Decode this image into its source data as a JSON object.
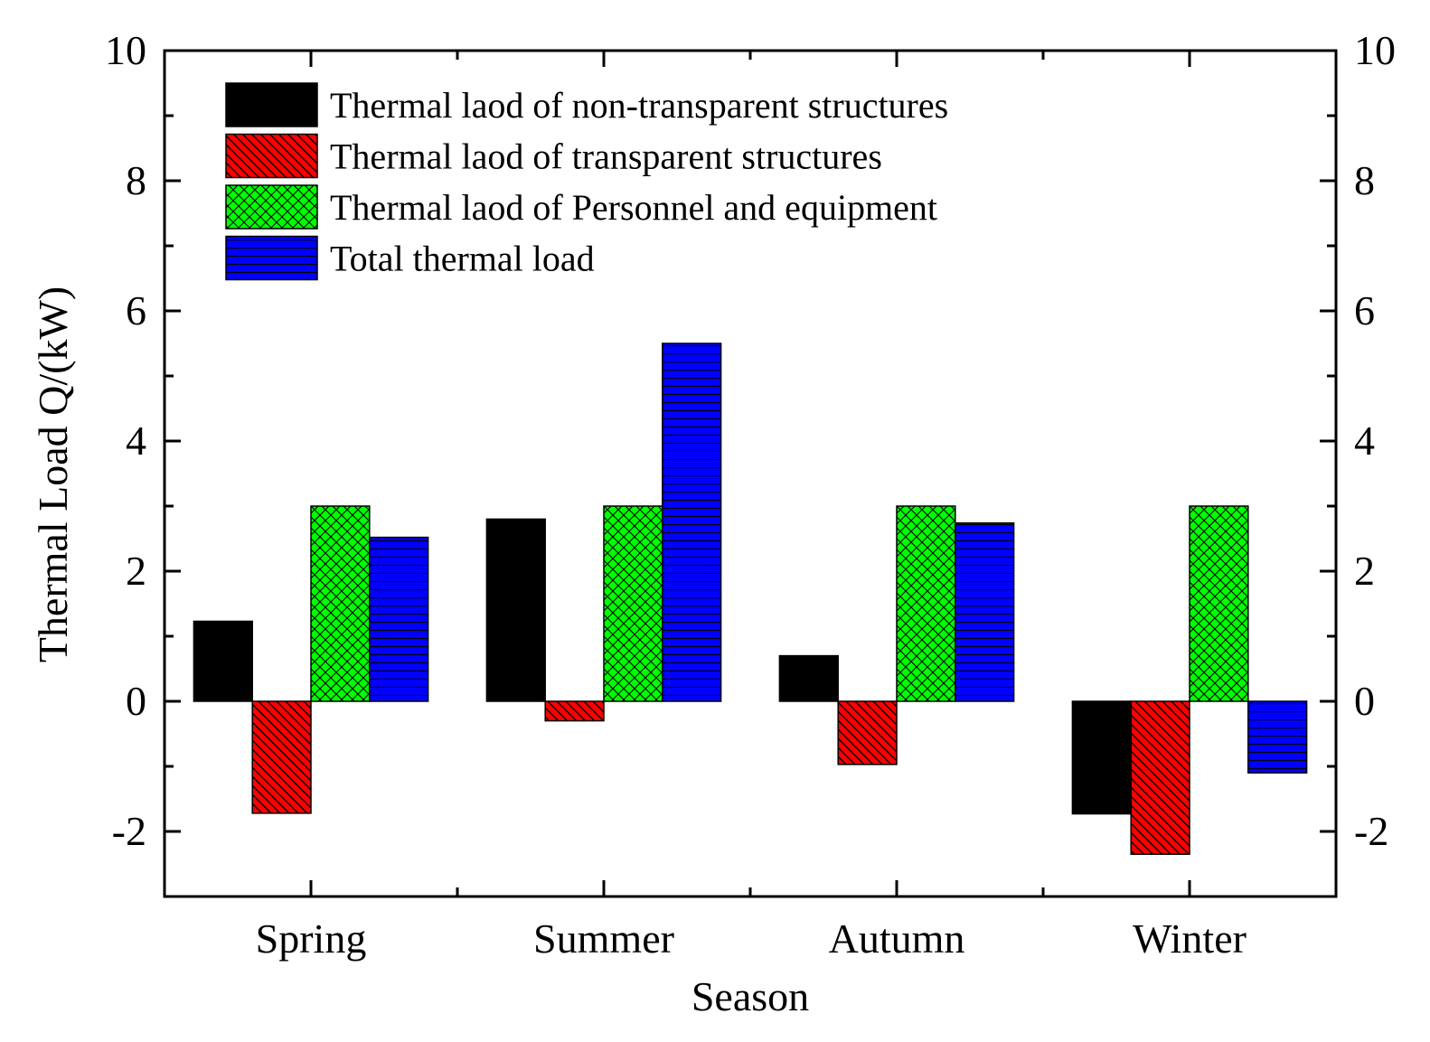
{
  "chart_data": {
    "type": "bar",
    "title": "",
    "xlabel": "Season",
    "ylabel": "Thermal Load Q/(kW)",
    "categories": [
      "Spring",
      "Summer",
      "Autumn",
      "Winter"
    ],
    "ylim": [
      -3,
      10
    ],
    "yticks": [
      -2,
      0,
      2,
      4,
      6,
      8,
      10
    ],
    "grid": false,
    "legend_position": "top-left",
    "series": [
      {
        "name": "Thermal laod of non-transparent structures",
        "values": [
          1.23,
          2.8,
          0.7,
          -1.73
        ],
        "color": "#000000",
        "pattern": "solid"
      },
      {
        "name": "Thermal laod of transparent structures",
        "values": [
          -1.72,
          -0.3,
          -0.97,
          -2.35
        ],
        "color": "#ff0000",
        "pattern": "diagonal-hatch"
      },
      {
        "name": "Thermal laod of Personnel and equipment",
        "values": [
          3.0,
          3.0,
          3.0,
          3.0
        ],
        "color": "#00ff00",
        "pattern": "cross-hatch"
      },
      {
        "name": "Total thermal load",
        "values": [
          2.52,
          5.5,
          2.74,
          -1.1
        ],
        "color": "#0000ff",
        "pattern": "horizontal-lines"
      }
    ]
  }
}
